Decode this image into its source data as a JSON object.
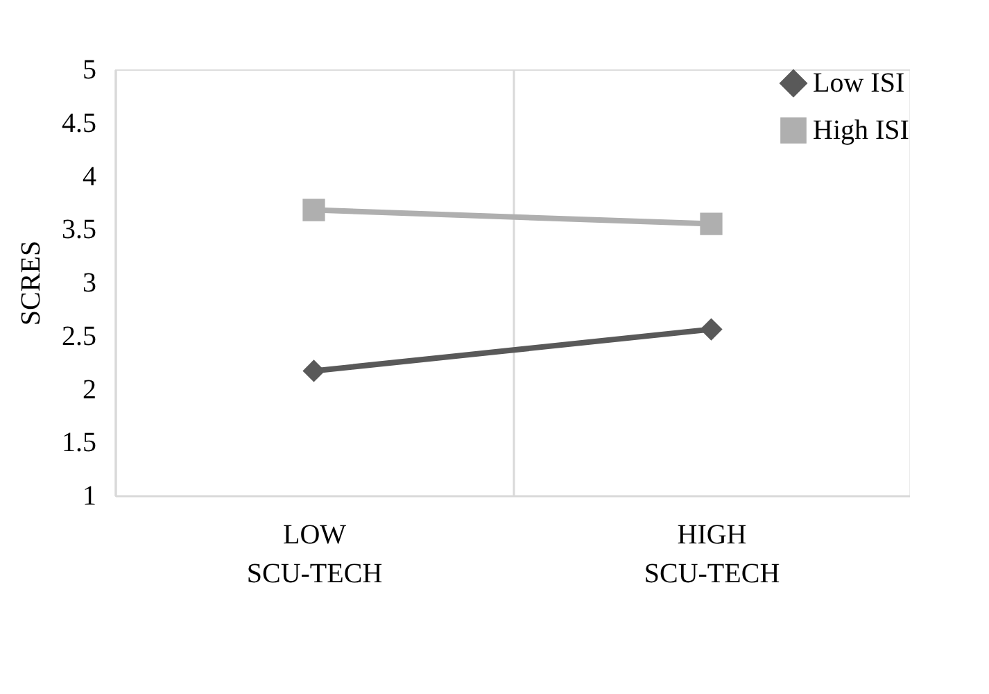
{
  "chart_data": {
    "type": "line",
    "ylabel": "SCRES",
    "categories": [
      "LOW SCU-TECH",
      "HIGH SCU-TECH"
    ],
    "series": [
      {
        "name": "Low ISI",
        "color": "#595959",
        "marker": "diamond",
        "values": [
          2.17,
          2.56
        ]
      },
      {
        "name": "High ISI",
        "color": "#afafaf",
        "marker": "square",
        "values": [
          3.68,
          3.55
        ]
      }
    ],
    "ylim": [
      1,
      5
    ],
    "yticks": [
      1,
      1.5,
      2,
      2.5,
      3,
      3.5,
      4,
      4.5,
      5
    ],
    "grid": "x",
    "legend": "top right",
    "line_style": "solid"
  }
}
